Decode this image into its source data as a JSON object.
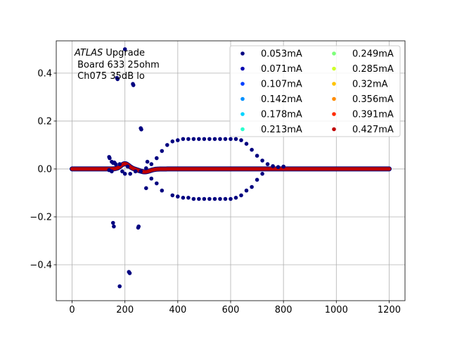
{
  "chart_data": {
    "type": "scatter",
    "annotation": {
      "lines": [
        {
          "italic": "ATLAS",
          "rest": " Upgrade"
        },
        {
          "italic": "",
          "rest": " Board 633 25ohm"
        },
        {
          "italic": "",
          "rest": " Ch075 35dB lo"
        }
      ]
    },
    "xlim": [
      -60,
      1260
    ],
    "ylim": [
      -0.55,
      0.535
    ],
    "xticks": [
      0,
      200,
      400,
      600,
      800,
      1000,
      1200
    ],
    "xtick_labels": [
      "0",
      "200",
      "400",
      "600",
      "800",
      "1000",
      "1200"
    ],
    "yticks": [
      -0.4,
      -0.2,
      0.0,
      0.2,
      0.4
    ],
    "ytick_labels": [
      "−0.4",
      "−0.2",
      "0.0",
      "0.2",
      "0.4"
    ],
    "grid": true,
    "legend_placement": "upper-right",
    "legend_columns": 2,
    "series": [
      {
        "name": "0.053mA",
        "color": "#000080",
        "points": [
          [
            140,
            0.05
          ],
          [
            142,
            0.045
          ],
          [
            150,
            0.03
          ],
          [
            155,
            0.025
          ],
          [
            160,
            0.027
          ],
          [
            165,
            0.02
          ],
          [
            170,
            0.38
          ],
          [
            172,
            0.375
          ],
          [
            180,
            0.02
          ],
          [
            200,
            0.5
          ],
          [
            210,
            0.01
          ],
          [
            230,
            0.355
          ],
          [
            232,
            0.35
          ],
          [
            260,
            0.17
          ],
          [
            262,
            0.165
          ],
          [
            280,
            0.003
          ],
          [
            285,
            0.03
          ],
          [
            300,
            0.02
          ],
          [
            320,
            0.045
          ],
          [
            340,
            0.075
          ],
          [
            360,
            0.1
          ],
          [
            380,
            0.115
          ],
          [
            400,
            0.12
          ],
          [
            420,
            0.125
          ],
          [
            440,
            0.125
          ],
          [
            460,
            0.125
          ],
          [
            480,
            0.125
          ],
          [
            500,
            0.125
          ],
          [
            520,
            0.125
          ],
          [
            540,
            0.125
          ],
          [
            560,
            0.125
          ],
          [
            580,
            0.125
          ],
          [
            600,
            0.125
          ],
          [
            620,
            0.125
          ],
          [
            640,
            0.12
          ],
          [
            660,
            0.105
          ],
          [
            680,
            0.08
          ],
          [
            700,
            0.055
          ],
          [
            720,
            0.035
          ],
          [
            740,
            0.02
          ],
          [
            760,
            0.012
          ],
          [
            780,
            0.008
          ],
          [
            800,
            0.01
          ],
          [
            140,
            -0.005
          ],
          [
            150,
            -0.01
          ],
          [
            155,
            -0.225
          ],
          [
            158,
            -0.24
          ],
          [
            180,
            -0.49
          ],
          [
            190,
            -0.01
          ],
          [
            200,
            -0.02
          ],
          [
            215,
            -0.43
          ],
          [
            218,
            -0.435
          ],
          [
            220,
            -0.02
          ],
          [
            240,
            -0.01
          ],
          [
            250,
            -0.245
          ],
          [
            252,
            -0.24
          ],
          [
            260,
            -0.01
          ],
          [
            280,
            -0.08
          ],
          [
            300,
            -0.04
          ],
          [
            320,
            -0.06
          ],
          [
            340,
            -0.09
          ],
          [
            380,
            -0.11
          ],
          [
            400,
            -0.115
          ],
          [
            420,
            -0.12
          ],
          [
            440,
            -0.12
          ],
          [
            460,
            -0.125
          ],
          [
            480,
            -0.125
          ],
          [
            500,
            -0.125
          ],
          [
            520,
            -0.125
          ],
          [
            540,
            -0.125
          ],
          [
            560,
            -0.125
          ],
          [
            580,
            -0.125
          ],
          [
            600,
            -0.125
          ],
          [
            620,
            -0.12
          ],
          [
            640,
            -0.11
          ],
          [
            660,
            -0.09
          ],
          [
            680,
            -0.075
          ],
          [
            700,
            -0.045
          ],
          [
            720,
            -0.02
          ]
        ]
      },
      {
        "name": "0.071mA",
        "color": "#0000b0",
        "points": []
      },
      {
        "name": "0.107mA",
        "color": "#0040ff",
        "points": []
      },
      {
        "name": "0.142mA",
        "color": "#0090ff",
        "points": []
      },
      {
        "name": "0.178mA",
        "color": "#00d4ff",
        "points": []
      },
      {
        "name": "0.213mA",
        "color": "#29ffce",
        "points": []
      },
      {
        "name": "0.249mA",
        "color": "#7dff7a",
        "points": []
      },
      {
        "name": "0.285mA",
        "color": "#ceff29",
        "points": []
      },
      {
        "name": "0.32mA",
        "color": "#ffc400",
        "points": []
      },
      {
        "name": "0.356mA",
        "color": "#ff8c00",
        "points": []
      },
      {
        "name": "0.391mA",
        "color": "#ff2c00",
        "points": []
      },
      {
        "name": "0.427mA",
        "color": "#c00000",
        "points": []
      }
    ]
  }
}
